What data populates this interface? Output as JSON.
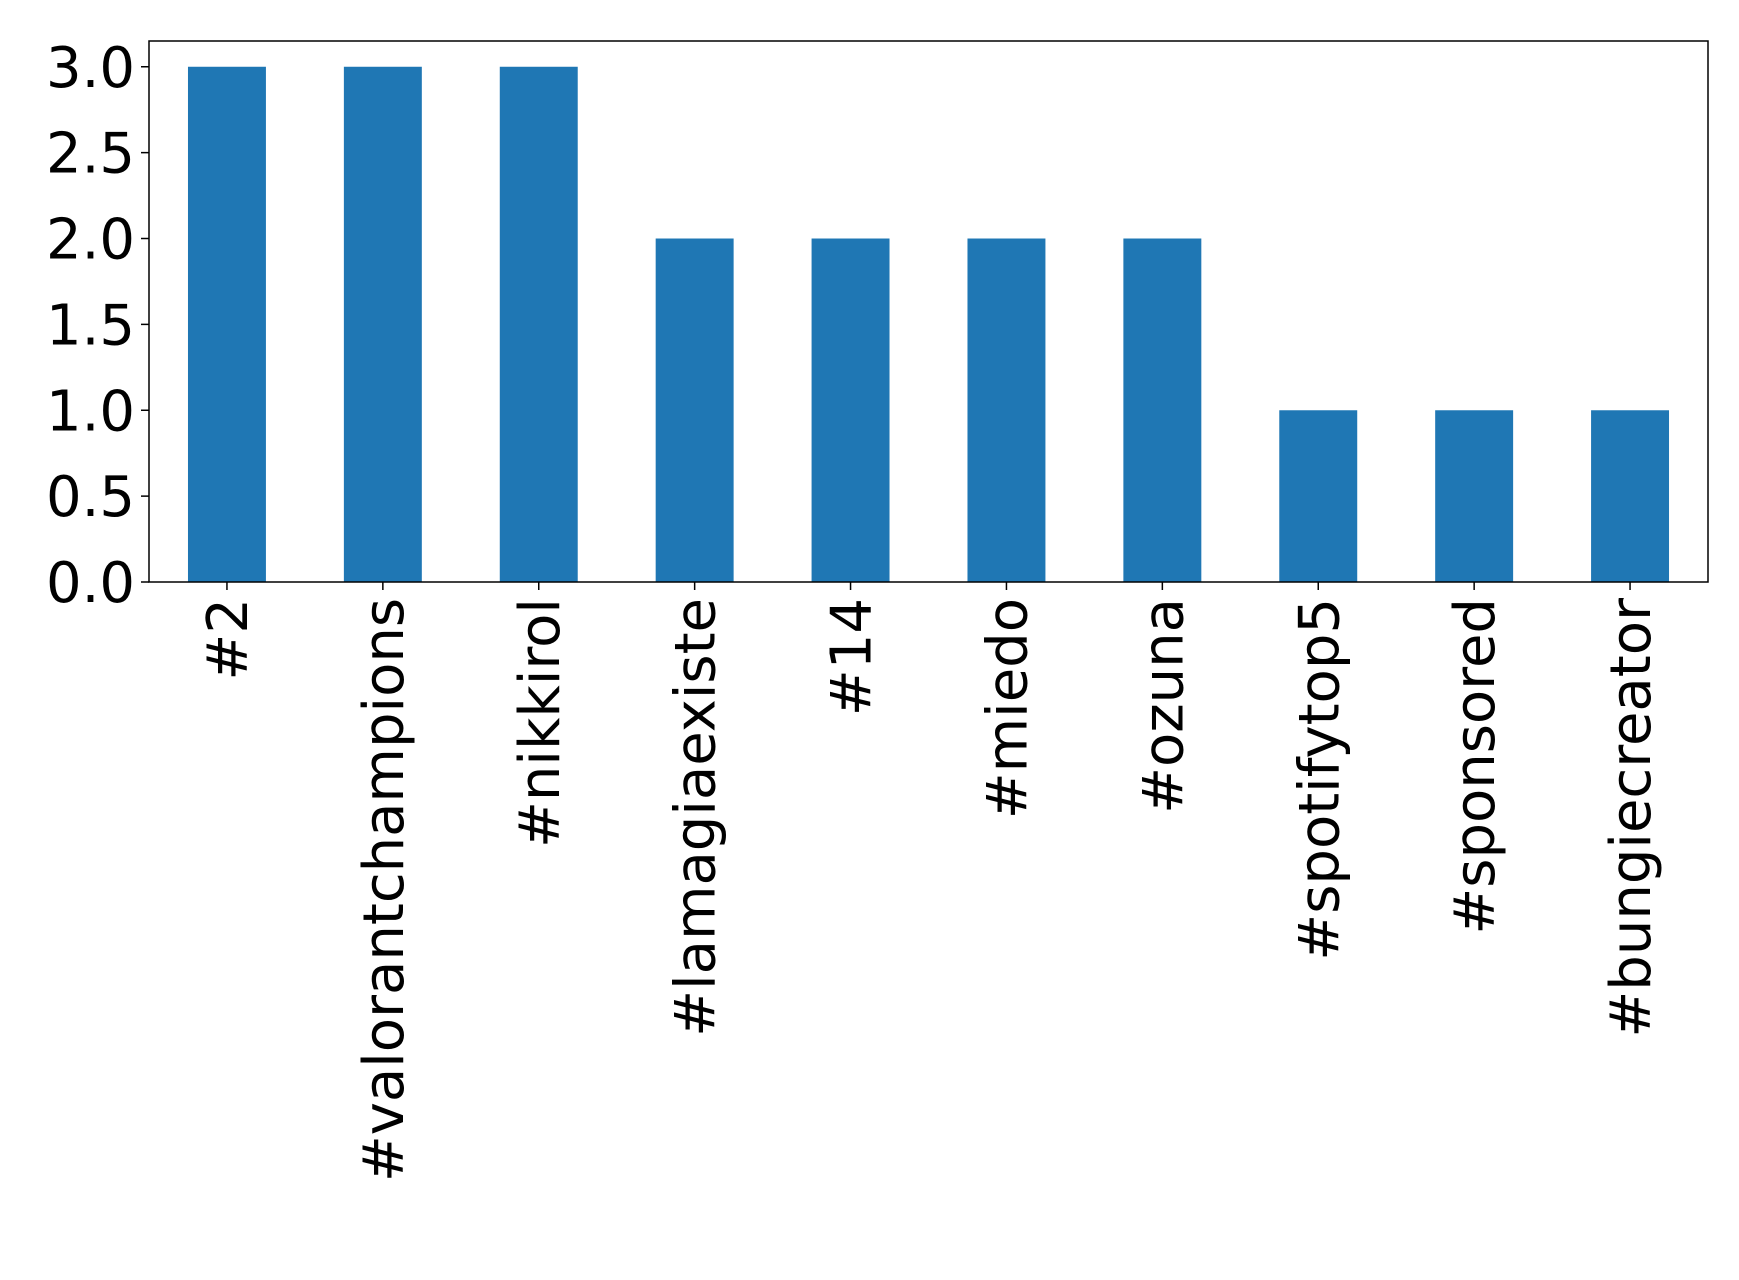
{
  "chart_data": {
    "type": "bar",
    "categories": [
      "#2",
      "#valorantchampions",
      "#nikkirol",
      "#lamagiaexiste",
      "#14",
      "#miedo",
      "#ozuna",
      "#spotifytop5",
      "#sponsored",
      "#bungiecreator"
    ],
    "values": [
      3,
      3,
      3,
      2,
      2,
      2,
      2,
      1,
      1,
      1
    ],
    "color": "#1f77b4",
    "ylim": [
      0,
      3.15
    ],
    "yticks": [
      {
        "value": 0,
        "label": "0.0"
      },
      {
        "value": 0.5,
        "label": "0.5"
      },
      {
        "value": 1,
        "label": "1.0"
      },
      {
        "value": 1.5,
        "label": "1.5"
      },
      {
        "value": 2,
        "label": "2.0"
      },
      {
        "value": 2.5,
        "label": "2.5"
      },
      {
        "value": 3,
        "label": "3.0"
      }
    ],
    "grid": false
  }
}
